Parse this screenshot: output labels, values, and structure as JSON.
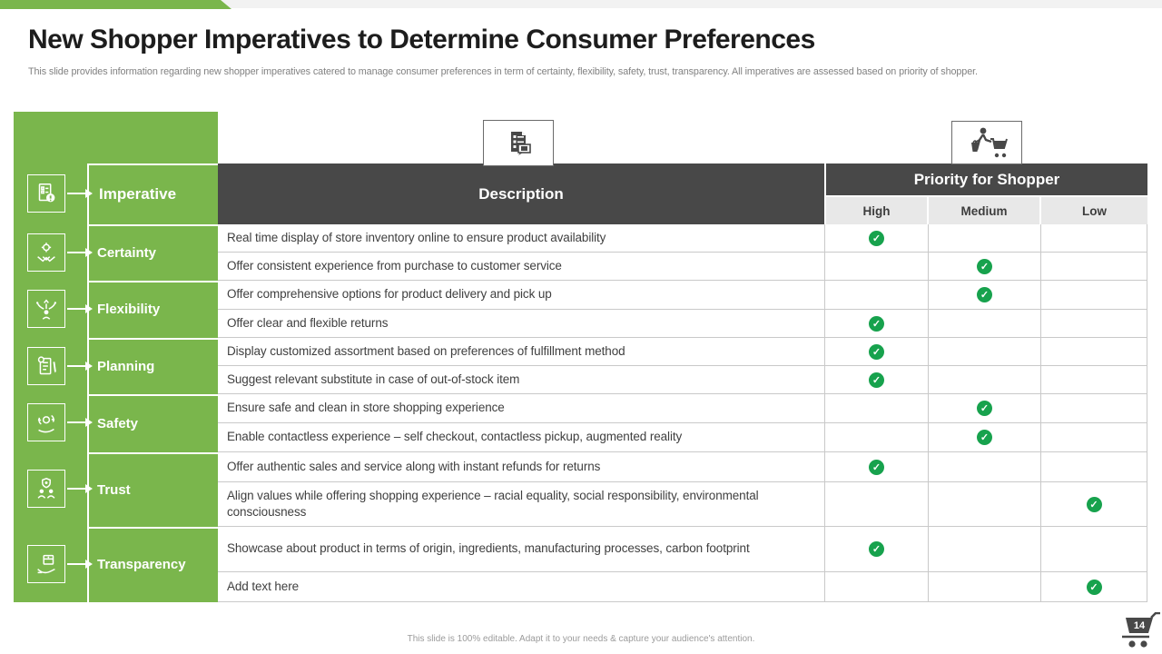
{
  "slide": {
    "title": "New Shopper Imperatives to Determine Consumer Preferences",
    "subtitle": "This slide provides information regarding new shopper imperatives catered to manage consumer preferences in term of certainty,  flexibility,  safety, trust, transparency. All  imperatives are assessed based on priority of shopper.",
    "footer": "This slide is 100% editable.  Adapt it to your needs & capture your audience's attention.",
    "page_number": "14"
  },
  "colors": {
    "accent_green": "#7ab64c",
    "header_dark": "#484848",
    "level_row_bg": "#e8e8e8",
    "check_green": "#17a24d"
  },
  "icons": {
    "sidebar": [
      "report-alert-icon",
      "partnership-gear-icon",
      "person-choices-icon",
      "planning-document-icon",
      "hand-gear-service-icon",
      "team-shield-icon",
      "hand-product-icon"
    ],
    "description_header": "checklist-chat-icon",
    "priority_header": "shopper-with-cart-icon",
    "page_badge": "shopping-cart-icon",
    "priority_check": "check-icon"
  },
  "table": {
    "header": {
      "imperative": "Imperative",
      "description": "Description",
      "priority": "Priority  for Shopper",
      "levels": [
        "High",
        "Medium",
        "Low"
      ]
    },
    "imperatives": [
      {
        "label": "Certainty"
      },
      {
        "label": "Flexibility"
      },
      {
        "label": "Planning"
      },
      {
        "label": "Safety"
      },
      {
        "label": "Trust"
      },
      {
        "label": "Transparency"
      }
    ],
    "rows": [
      {
        "group": "Certainty",
        "description": "Real time display of store inventory  online to ensure  product availability",
        "priority": "High"
      },
      {
        "group": "Certainty",
        "description": "Offer consistent  experience from purchase to customer  service",
        "priority": "Medium"
      },
      {
        "group": "Flexibility",
        "description": "Offer comprehensive  options for product delivery and pick up",
        "priority": "Medium"
      },
      {
        "group": "Flexibility",
        "description": "Offer clear and flexible  returns",
        "priority": "High"
      },
      {
        "group": "Planning",
        "description": "Display customized  assortment based on preferences  of fulfillment  method",
        "priority": "High"
      },
      {
        "group": "Planning",
        "description": "Suggest relevant  substitute  in case of out-of-stock  item",
        "priority": "High"
      },
      {
        "group": "Safety",
        "description": "Ensure safe and clean in store shopping experience",
        "priority": "Medium"
      },
      {
        "group": "Safety",
        "description": "Enable contactless  experience – self checkout,  contactless pickup,  augmented  reality",
        "priority": "Medium"
      },
      {
        "group": "Trust",
        "description": "Offer authentic  sales and service along with instant  refunds for returns",
        "priority": "High"
      },
      {
        "group": "Trust",
        "description": "Align values while  offering shopping experience – racial equality,  social responsibility, environmental  consciousness",
        "priority": "Low"
      },
      {
        "group": "Transparency",
        "description": "Showcase about product in terms of origin, ingredients,  manufacturing  processes, carbon footprint",
        "priority": "High"
      },
      {
        "group": "Transparency",
        "description": "Add text here",
        "priority": "Low"
      }
    ]
  }
}
